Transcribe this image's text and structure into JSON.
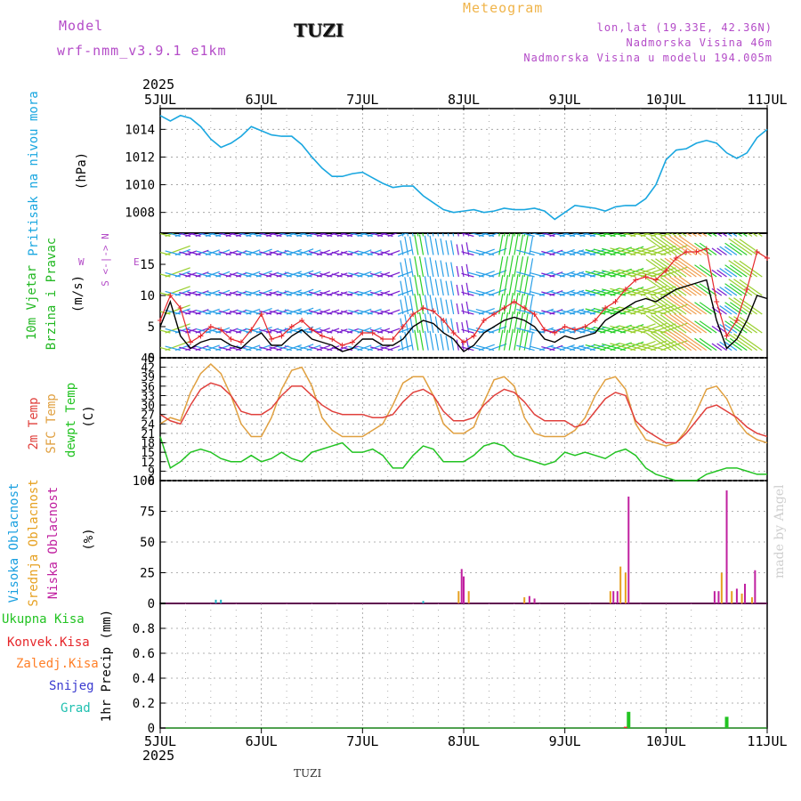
{
  "header": {
    "model_label": "Model",
    "model_name": "wrf-nmm_v3.9.1 e1km",
    "station": "TUZI",
    "title": "Meteogram",
    "coords": "lon,lat (19.33E, 42.36N)",
    "elevation": "Nadmorska Visina 46m",
    "model_elevation": "Nadmorska Visina u modelu 194.005m"
  },
  "year": "2025",
  "x_ticks": [
    "5JUL",
    "6JUL",
    "7JUL",
    "8JUL",
    "9JUL",
    "10JUL",
    "11JUL"
  ],
  "panels": {
    "pressure": {
      "label": "Pritisak na nivou mora",
      "unit": "(hPa)"
    },
    "wind": {
      "label1": "10m Vjetar",
      "label2": "Brzina i Pravac",
      "unit": "(m/s)",
      "compass_ns": "S <-|-> N",
      "compass_w": "W",
      "compass_e": "E"
    },
    "temp": {
      "label1": "2m Temp",
      "label2": "SFC Temp",
      "label3": "dewpt Temp",
      "unit": "(C)"
    },
    "cloud": {
      "label1": "Visoka Oblacnost",
      "label2": "Srednja Oblacnost",
      "label3": "Niska Oblacnost",
      "unit": "(%)"
    },
    "precip": {
      "unit": "1hr Precip (mm)",
      "legend": [
        "Ukupna Kisa",
        "Konvek.Kisa",
        "Zaledj.Kisa",
        "Snijeg",
        "Grad"
      ]
    }
  },
  "watermark": "made by Angel",
  "footer_station": "TUZI",
  "colors": {
    "pressure": "#1aa7e0",
    "wind_speed": "#000000",
    "wind_gust": "#e6262a",
    "temp_2m": "#e0403c",
    "temp_sfc": "#e0a040",
    "dewpoint": "#22c322",
    "cloud_high": "#20b0c0",
    "cloud_mid": "#e6a020",
    "cloud_low": "#c020a0",
    "rain_total": "#22c322",
    "rain_conv": "#e6262a",
    "rain_frozen": "#ff7f27",
    "snow": "#3a3ad0",
    "hail": "#20c0b0",
    "purple_text": "#b44cc8"
  },
  "chart_data": [
    {
      "type": "line",
      "name": "pressure",
      "x": [
        0.0,
        0.1,
        0.2,
        0.3,
        0.4,
        0.5,
        0.6,
        0.7,
        0.8,
        0.9,
        1.0,
        1.1,
        1.2,
        1.3,
        1.4,
        1.5,
        1.6,
        1.7,
        1.8,
        1.9,
        2.0,
        2.1,
        2.2,
        2.3,
        2.4,
        2.5,
        2.6,
        2.7,
        2.8,
        2.9,
        3.0,
        3.1,
        3.2,
        3.3,
        3.4,
        3.5,
        3.6,
        3.7,
        3.8,
        3.9,
        4.0,
        4.1,
        4.2,
        4.3,
        4.4,
        4.5,
        4.6,
        4.7,
        4.8,
        4.9,
        5.0,
        5.1,
        5.2,
        5.3,
        5.4,
        5.5,
        5.6,
        5.7,
        5.8,
        5.9,
        6.0
      ],
      "y": [
        1015.0,
        1014.6,
        1015.0,
        1014.8,
        1014.2,
        1013.3,
        1012.7,
        1013.0,
        1013.5,
        1014.2,
        1013.9,
        1013.6,
        1013.5,
        1013.5,
        1012.9,
        1012.0,
        1011.2,
        1010.6,
        1010.6,
        1010.8,
        1010.9,
        1010.5,
        1010.1,
        1009.8,
        1009.9,
        1009.9,
        1009.2,
        1008.7,
        1008.2,
        1008.0,
        1008.1,
        1008.2,
        1008.0,
        1008.1,
        1008.3,
        1008.2,
        1008.2,
        1008.3,
        1008.1,
        1007.5,
        1008.0,
        1008.5,
        1008.4,
        1008.3,
        1008.1,
        1008.4,
        1008.5,
        1008.5,
        1009.0,
        1010.0,
        1011.8,
        1012.5,
        1012.6,
        1013.0,
        1013.2,
        1013.0,
        1012.3,
        1011.9,
        1012.3,
        1013.4,
        1014.0
      ],
      "ylim": [
        1006.5,
        1015.5
      ],
      "yticks": [
        1008,
        1010,
        1012,
        1014
      ]
    },
    {
      "type": "line",
      "name": "wind",
      "x": [
        0.0,
        0.1,
        0.2,
        0.3,
        0.4,
        0.5,
        0.6,
        0.7,
        0.8,
        0.9,
        1.0,
        1.1,
        1.2,
        1.3,
        1.4,
        1.5,
        1.6,
        1.7,
        1.8,
        1.9,
        2.0,
        2.1,
        2.2,
        2.3,
        2.4,
        2.5,
        2.6,
        2.7,
        2.8,
        2.9,
        3.0,
        3.1,
        3.2,
        3.3,
        3.4,
        3.5,
        3.6,
        3.7,
        3.8,
        3.9,
        4.0,
        4.1,
        4.2,
        4.3,
        4.4,
        4.5,
        4.6,
        4.7,
        4.8,
        4.9,
        5.0,
        5.1,
        5.2,
        5.3,
        5.4,
        5.5,
        5.6,
        5.7,
        5.8,
        5.9,
        6.0
      ],
      "speed": [
        5.0,
        9.0,
        3.5,
        1.5,
        2.5,
        3.0,
        3.0,
        2.0,
        1.5,
        3.0,
        4.0,
        2.0,
        2.0,
        3.5,
        4.5,
        3.0,
        2.5,
        2.0,
        1.0,
        1.5,
        3.0,
        3.0,
        2.0,
        2.0,
        3.0,
        5.0,
        6.0,
        5.5,
        4.0,
        3.0,
        1.0,
        2.0,
        4.0,
        5.0,
        6.0,
        6.5,
        6.0,
        5.0,
        3.0,
        2.5,
        3.5,
        3.0,
        3.5,
        4.0,
        6.0,
        7.0,
        8.0,
        9.0,
        9.5,
        9.0,
        10.0,
        11.0,
        11.5,
        12.0,
        12.5,
        6.0,
        1.5,
        3.0,
        6.0,
        10.0,
        9.5
      ],
      "gust": [
        6.0,
        10.0,
        8.0,
        2.5,
        3.5,
        5.0,
        4.5,
        3.0,
        2.5,
        4.5,
        7.0,
        3.0,
        3.5,
        5.0,
        6.0,
        4.5,
        3.5,
        3.0,
        2.0,
        2.5,
        4.0,
        4.0,
        3.0,
        3.0,
        5.0,
        7.0,
        8.0,
        7.5,
        6.0,
        4.0,
        2.5,
        3.5,
        6.0,
        7.0,
        8.0,
        9.0,
        8.0,
        7.0,
        4.5,
        4.0,
        5.0,
        4.5,
        5.0,
        6.0,
        8.0,
        9.0,
        11.0,
        12.5,
        13.0,
        12.5,
        14.0,
        16.0,
        17.0,
        17.0,
        17.5,
        9.0,
        3.5,
        6.0,
        11.0,
        17.0,
        16.0
      ],
      "ylim": [
        0,
        20
      ],
      "yticks": [
        0,
        5,
        10,
        15
      ]
    },
    {
      "type": "line",
      "name": "temperature",
      "x": [
        0.0,
        0.1,
        0.2,
        0.3,
        0.4,
        0.5,
        0.6,
        0.7,
        0.8,
        0.9,
        1.0,
        1.1,
        1.2,
        1.3,
        1.4,
        1.5,
        1.6,
        1.7,
        1.8,
        1.9,
        2.0,
        2.1,
        2.2,
        2.3,
        2.4,
        2.5,
        2.6,
        2.7,
        2.8,
        2.9,
        3.0,
        3.1,
        3.2,
        3.3,
        3.4,
        3.5,
        3.6,
        3.7,
        3.8,
        3.9,
        4.0,
        4.1,
        4.2,
        4.3,
        4.4,
        4.5,
        4.6,
        4.7,
        4.8,
        4.9,
        5.0,
        5.1,
        5.2,
        5.3,
        5.4,
        5.5,
        5.6,
        5.7,
        5.8,
        5.9,
        6.0
      ],
      "t2m": [
        27,
        25,
        24,
        30,
        35,
        37,
        36,
        33,
        28,
        27,
        27,
        29,
        33,
        36,
        36,
        33,
        30,
        28,
        27,
        27,
        27,
        26,
        26,
        27,
        31,
        34,
        35,
        33,
        28,
        25,
        25,
        26,
        30,
        33,
        35,
        34,
        31,
        27,
        25,
        25,
        25,
        23,
        24,
        28,
        32,
        34,
        33,
        25,
        22,
        20,
        18,
        18,
        21,
        25,
        29,
        30,
        28,
        26,
        23,
        21,
        20
      ],
      "tsfc": [
        24,
        26,
        25,
        34,
        40,
        43,
        40,
        33,
        24,
        20,
        20,
        26,
        35,
        41,
        42,
        36,
        26,
        22,
        20,
        20,
        20,
        22,
        24,
        30,
        37,
        39,
        39,
        33,
        24,
        21,
        21,
        23,
        31,
        38,
        39,
        36,
        26,
        21,
        20,
        20,
        20,
        22,
        26,
        33,
        38,
        39,
        35,
        24,
        19,
        18,
        17,
        18,
        22,
        28,
        35,
        36,
        32,
        25,
        21,
        19,
        18
      ],
      "dewpt": [
        20,
        10,
        12,
        15,
        16,
        15,
        13,
        12,
        12,
        14,
        12,
        13,
        15,
        13,
        12,
        15,
        16,
        17,
        18,
        15,
        15,
        16,
        14,
        10,
        10,
        14,
        17,
        16,
        12,
        12,
        12,
        14,
        17,
        18,
        17,
        14,
        13,
        12,
        11,
        12,
        15,
        14,
        15,
        14,
        13,
        15,
        16,
        14,
        10,
        8,
        7,
        6,
        6,
        6,
        8,
        9,
        10,
        10,
        9,
        8,
        8
      ],
      "ylim": [
        6,
        45
      ],
      "yticks": [
        6,
        9,
        12,
        15,
        18,
        21,
        24,
        27,
        30,
        33,
        36,
        39,
        42,
        45
      ]
    },
    {
      "type": "bar",
      "name": "cloudiness",
      "ylim": [
        0,
        100
      ],
      "yticks": [
        0,
        25,
        50,
        75,
        100
      ],
      "series": [
        {
          "name": "Visoka Oblacnost",
          "x": [
            0.55,
            0.6,
            2.6
          ],
          "values": [
            3,
            3,
            2
          ]
        },
        {
          "name": "Srednja Oblacnost",
          "x": [
            2.95,
            3.05,
            3.6,
            3.7,
            4.45,
            4.55,
            4.6,
            5.55,
            5.65,
            5.75,
            5.85
          ],
          "values": [
            10,
            10,
            5,
            3,
            10,
            30,
            25,
            25,
            10,
            8,
            5
          ]
        },
        {
          "name": "Niska Oblacnost",
          "x": [
            2.98,
            3.0,
            3.65,
            3.7,
            4.48,
            4.52,
            4.63,
            5.48,
            5.52,
            5.6,
            5.7,
            5.78,
            5.88,
            6.4,
            6.6
          ],
          "values": [
            28,
            22,
            6,
            4,
            10,
            10,
            87,
            10,
            10,
            92,
            12,
            16,
            27,
            8,
            10
          ]
        }
      ]
    },
    {
      "type": "bar",
      "name": "precipitation",
      "ylim": [
        0,
        1.0
      ],
      "yticks": [
        0,
        0.2,
        0.4,
        0.6,
        0.8
      ],
      "series": [
        {
          "name": "Ukupna Kisa",
          "x": [
            4.63,
            5.6
          ],
          "values": [
            0.13,
            0.09
          ]
        },
        {
          "name": "Konvek.Kisa",
          "x": [
            4.6
          ],
          "values": [
            0.01
          ]
        }
      ]
    }
  ]
}
